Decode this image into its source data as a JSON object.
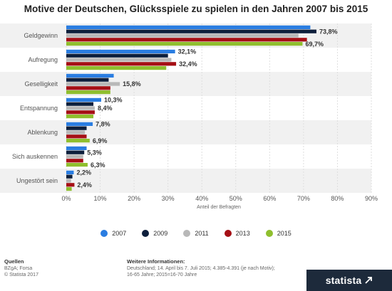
{
  "title": "Motive der Deutschen, Glücksspiele zu spielen in den Jahren 2007 bis 2015",
  "chart_data": {
    "type": "bar",
    "orientation": "horizontal",
    "categories": [
      "Geldgewinn",
      "Aufregung",
      "Geselligkeit",
      "Entspannung",
      "Ablenkung",
      "Sich auskennen",
      "Ungestört sein"
    ],
    "series": [
      {
        "name": "2007",
        "color": "#2a7de1",
        "values": [
          72.0,
          32.1,
          14.0,
          10.3,
          7.8,
          6.0,
          2.2
        ]
      },
      {
        "name": "2009",
        "color": "#0d1f3c",
        "values": [
          73.8,
          30.0,
          12.5,
          8.0,
          6.0,
          5.3,
          1.8
        ]
      },
      {
        "name": "2011",
        "color": "#b8b8b8",
        "values": [
          68.5,
          31.0,
          15.8,
          8.4,
          5.5,
          5.0,
          1.4
        ]
      },
      {
        "name": "2013",
        "color": "#a50f15",
        "values": [
          71.0,
          32.4,
          13.0,
          8.4,
          6.0,
          5.0,
          2.4
        ]
      },
      {
        "name": "2015",
        "color": "#8fbf2e",
        "values": [
          69.7,
          29.5,
          13.0,
          8.0,
          6.9,
          6.3,
          1.6
        ]
      }
    ],
    "data_labels": [
      {
        "category": 0,
        "series": 1,
        "text": "73,8%"
      },
      {
        "category": 0,
        "series": 4,
        "text": "69,7%"
      },
      {
        "category": 1,
        "series": 0,
        "text": "32,1%"
      },
      {
        "category": 1,
        "series": 3,
        "text": "32,4%"
      },
      {
        "category": 2,
        "series": 2,
        "text": "15,8%"
      },
      {
        "category": 3,
        "series": 0,
        "text": "10,3%"
      },
      {
        "category": 3,
        "series": 2,
        "text": "8,4%"
      },
      {
        "category": 4,
        "series": 0,
        "text": "7,8%"
      },
      {
        "category": 4,
        "series": 4,
        "text": "6,9%"
      },
      {
        "category": 5,
        "series": 1,
        "text": "5,3%"
      },
      {
        "category": 5,
        "series": 4,
        "text": "6,3%"
      },
      {
        "category": 6,
        "series": 0,
        "text": "2,2%"
      },
      {
        "category": 6,
        "series": 3,
        "text": "2,4%"
      }
    ],
    "xlim": [
      0,
      90
    ],
    "xticks": [
      0,
      10,
      20,
      30,
      40,
      50,
      60,
      70,
      80,
      90
    ],
    "xtick_labels": [
      "0%",
      "10%",
      "20%",
      "30%",
      "40%",
      "50%",
      "60%",
      "70%",
      "80%",
      "90%"
    ],
    "xlabel": "Anteil der Befragten",
    "ylabel": "",
    "grid": true,
    "legend_position": "bottom"
  },
  "footer": {
    "sources_heading": "Quellen",
    "sources_lines": [
      "BZgA; Forsa",
      "© Statista 2017"
    ],
    "info_heading": "Weitere Informationen:",
    "info_lines": [
      "Deutschland; 14. April bis 7. Juli 2015; 4.385-4.391 (je nach Motiv);",
      "16-65 Jahre; 2015=16-70 Jahre"
    ],
    "brand": "statista"
  }
}
